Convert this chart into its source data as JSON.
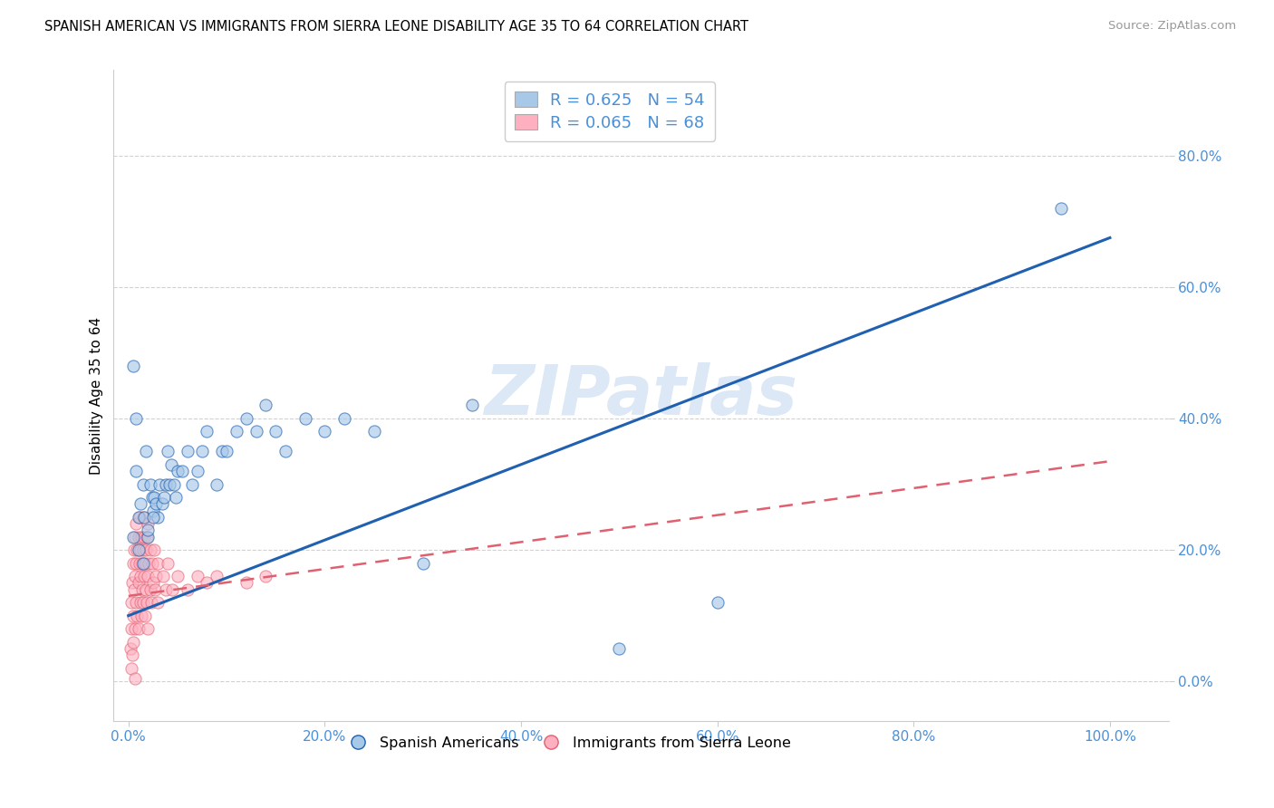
{
  "title": "SPANISH AMERICAN VS IMMIGRANTS FROM SIERRA LEONE DISABILITY AGE 35 TO 64 CORRELATION CHART",
  "source": "Source: ZipAtlas.com",
  "ylabel": "Disability Age 35 to 64",
  "x_ticks": [
    0.0,
    0.2,
    0.4,
    0.6,
    0.8,
    1.0
  ],
  "x_tick_labels": [
    "0.0%",
    "20.0%",
    "40.0%",
    "60.0%",
    "80.0%",
    "100.0%"
  ],
  "y_ticks": [
    0.0,
    0.2,
    0.4,
    0.6,
    0.8
  ],
  "y_tick_labels": [
    "0.0%",
    "20.0%",
    "40.0%",
    "60.0%",
    "80.0%"
  ],
  "xlim": [
    -0.015,
    1.06
  ],
  "ylim": [
    -0.06,
    0.93
  ],
  "blue_color": "#a8c8e8",
  "pink_color": "#ffb0c0",
  "blue_line_color": "#2060b0",
  "pink_line_color": "#e06070",
  "watermark": "ZIPatlas",
  "watermark_color": "#dce8f5",
  "blue_R": 0.625,
  "blue_N": 54,
  "pink_R": 0.065,
  "pink_N": 68,
  "blue_trend_x0": 0.0,
  "blue_trend_y0": 0.1,
  "blue_trend_x1": 1.0,
  "blue_trend_y1": 0.675,
  "pink_trend_x0": 0.0,
  "pink_trend_y0": 0.13,
  "pink_trend_x1": 1.0,
  "pink_trend_y1": 0.335,
  "blue_scatter_x": [
    0.005,
    0.008,
    0.01,
    0.012,
    0.015,
    0.016,
    0.018,
    0.02,
    0.022,
    0.024,
    0.025,
    0.026,
    0.028,
    0.03,
    0.032,
    0.034,
    0.036,
    0.038,
    0.04,
    0.042,
    0.044,
    0.046,
    0.048,
    0.05,
    0.055,
    0.06,
    0.065,
    0.07,
    0.075,
    0.08,
    0.09,
    0.095,
    0.1,
    0.11,
    0.12,
    0.13,
    0.14,
    0.15,
    0.16,
    0.18,
    0.2,
    0.22,
    0.25,
    0.3,
    0.35,
    0.5,
    0.6,
    0.005,
    0.01,
    0.015,
    0.02,
    0.025,
    0.008,
    0.95
  ],
  "blue_scatter_y": [
    0.48,
    0.32,
    0.25,
    0.27,
    0.3,
    0.25,
    0.35,
    0.22,
    0.3,
    0.28,
    0.26,
    0.28,
    0.27,
    0.25,
    0.3,
    0.27,
    0.28,
    0.3,
    0.35,
    0.3,
    0.33,
    0.3,
    0.28,
    0.32,
    0.32,
    0.35,
    0.3,
    0.32,
    0.35,
    0.38,
    0.3,
    0.35,
    0.35,
    0.38,
    0.4,
    0.38,
    0.42,
    0.38,
    0.35,
    0.4,
    0.38,
    0.4,
    0.38,
    0.18,
    0.42,
    0.05,
    0.12,
    0.22,
    0.2,
    0.18,
    0.23,
    0.25,
    0.4,
    0.72
  ],
  "pink_scatter_x": [
    0.002,
    0.003,
    0.003,
    0.004,
    0.004,
    0.005,
    0.005,
    0.005,
    0.006,
    0.006,
    0.007,
    0.007,
    0.007,
    0.008,
    0.008,
    0.008,
    0.009,
    0.009,
    0.01,
    0.01,
    0.01,
    0.011,
    0.011,
    0.012,
    0.012,
    0.012,
    0.013,
    0.013,
    0.014,
    0.014,
    0.015,
    0.015,
    0.015,
    0.016,
    0.016,
    0.017,
    0.017,
    0.018,
    0.018,
    0.019,
    0.019,
    0.02,
    0.02,
    0.02,
    0.021,
    0.022,
    0.022,
    0.023,
    0.024,
    0.025,
    0.026,
    0.027,
    0.028,
    0.03,
    0.03,
    0.035,
    0.038,
    0.04,
    0.045,
    0.05,
    0.06,
    0.07,
    0.08,
    0.09,
    0.12,
    0.14,
    0.003,
    0.007
  ],
  "pink_scatter_y": [
    0.05,
    0.08,
    0.12,
    0.04,
    0.15,
    0.1,
    0.18,
    0.06,
    0.14,
    0.2,
    0.08,
    0.16,
    0.22,
    0.12,
    0.18,
    0.24,
    0.1,
    0.2,
    0.15,
    0.22,
    0.08,
    0.18,
    0.25,
    0.12,
    0.2,
    0.16,
    0.22,
    0.1,
    0.18,
    0.14,
    0.2,
    0.12,
    0.25,
    0.16,
    0.22,
    0.1,
    0.18,
    0.14,
    0.2,
    0.12,
    0.22,
    0.16,
    0.08,
    0.24,
    0.18,
    0.14,
    0.2,
    0.12,
    0.18,
    0.15,
    0.2,
    0.14,
    0.16,
    0.18,
    0.12,
    0.16,
    0.14,
    0.18,
    0.14,
    0.16,
    0.14,
    0.16,
    0.15,
    0.16,
    0.15,
    0.16,
    0.02,
    0.005
  ]
}
